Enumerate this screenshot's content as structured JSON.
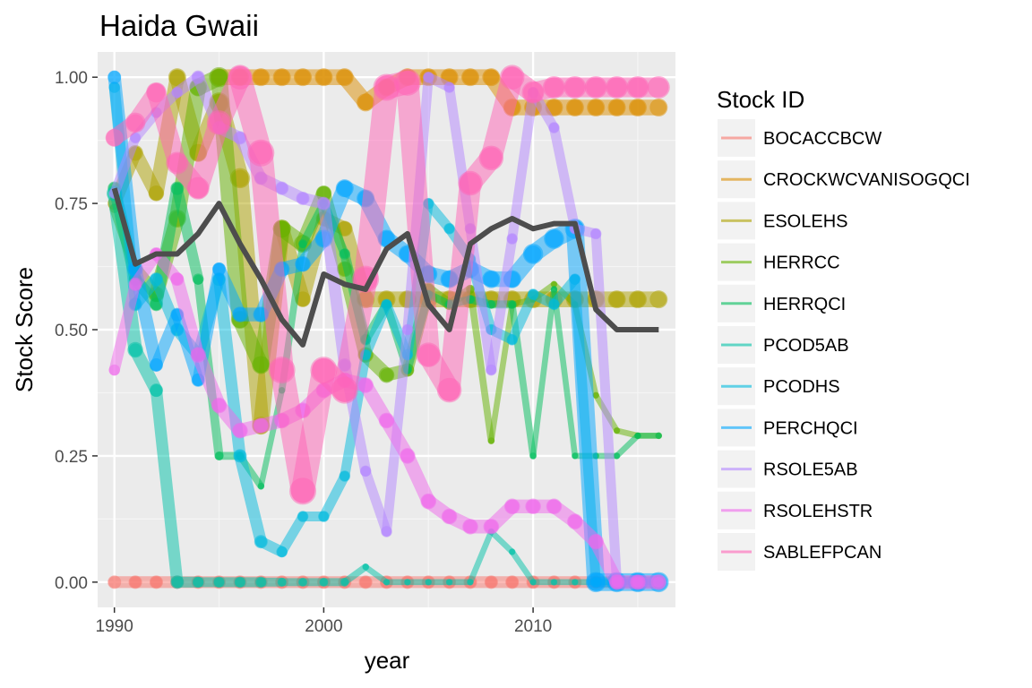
{
  "chart_data": {
    "type": "line",
    "title": "Haida Gwaii",
    "xlabel": "year",
    "ylabel": "Stock Score",
    "xlim": [
      1989.2,
      2016.8
    ],
    "ylim": [
      -0.05,
      1.05
    ],
    "x_ticks": [
      1990,
      2000,
      2010
    ],
    "x_tick_labels": [
      "1990",
      "2000",
      "2010"
    ],
    "y_ticks": [
      0,
      0.25,
      0.5,
      0.75,
      1.0
    ],
    "y_tick_labels": [
      "0.00",
      "0.25",
      "0.50",
      "0.75",
      "1.00"
    ],
    "grid": true,
    "legend": {
      "title": "Stock ID",
      "placement": "right"
    },
    "years": [
      1990,
      1991,
      1992,
      1993,
      1994,
      1995,
      1996,
      1997,
      1998,
      1999,
      2000,
      2001,
      2002,
      2003,
      2004,
      2005,
      2006,
      2007,
      2008,
      2009,
      2010,
      2011,
      2012,
      2013,
      2014,
      2015,
      2016
    ],
    "series": [
      {
        "name": "BOCACCBCW",
        "color": "#F8766D",
        "values": [
          0,
          0,
          0,
          0,
          0,
          0,
          0,
          0,
          0,
          0,
          0,
          0,
          0,
          0,
          0,
          0,
          0,
          0,
          0,
          0,
          0,
          0,
          0,
          0,
          0,
          0,
          0
        ],
        "sizes": [
          6,
          6,
          6,
          6,
          6,
          6,
          6,
          6,
          6,
          6,
          6,
          6,
          6,
          6,
          6,
          6,
          6,
          6,
          6,
          6,
          6,
          6,
          6,
          6,
          6,
          6,
          6
        ]
      },
      {
        "name": "CROCKWCVANISOGQCI",
        "color": "#DB8E00",
        "values": [
          null,
          null,
          null,
          null,
          null,
          1.0,
          1.0,
          1.0,
          1.0,
          1.0,
          1.0,
          1.0,
          0.95,
          0.98,
          1.0,
          1.0,
          1.0,
          1.0,
          1.0,
          0.94,
          0.94,
          0.94,
          0.94,
          0.94,
          0.94,
          0.94,
          0.94
        ],
        "sizes": [
          null,
          null,
          null,
          null,
          null,
          8,
          8,
          8,
          8,
          8,
          8,
          8,
          8,
          8,
          8,
          8,
          8,
          8,
          8,
          8,
          8,
          8,
          8,
          8,
          8,
          8,
          8
        ]
      },
      {
        "name": "ESOLEHS",
        "color": "#AEA200",
        "values": [
          0.75,
          0.85,
          0.77,
          1.0,
          0.85,
          0.95,
          0.8,
          0.31,
          0.7,
          0.56,
          0.72,
          0.7,
          0.56,
          0.56,
          0.56,
          0.56,
          0.56,
          0.56,
          0.56,
          0.56,
          0.56,
          0.56,
          0.56,
          0.56,
          0.56,
          0.56,
          0.56
        ],
        "sizes": [
          6,
          7,
          7,
          8,
          8,
          9,
          9,
          8,
          8,
          7,
          7,
          7,
          8,
          8,
          8,
          8,
          8,
          8,
          8,
          8,
          8,
          8,
          8,
          8,
          8,
          8,
          8
        ]
      },
      {
        "name": "HERRCC",
        "color": "#64B200",
        "values": [
          0.74,
          0.62,
          0.57,
          0.72,
          0.98,
          1.0,
          0.52,
          0.43,
          0.7,
          0.67,
          0.77,
          0.62,
          0.45,
          0.41,
          0.42,
          0.58,
          0.55,
          0.58,
          0.28,
          0.55,
          0.56,
          0.59,
          0.55,
          0.37,
          0.3,
          0.29,
          0.29
        ],
        "sizes": [
          4,
          6,
          7,
          8,
          8,
          9,
          8,
          8,
          8,
          8,
          7,
          7,
          7,
          7,
          6,
          6,
          5,
          4,
          3,
          3,
          3,
          3,
          3,
          3,
          3,
          3,
          3
        ]
      },
      {
        "name": "HERRQCI",
        "color": "#00BD5C",
        "values": [
          0.78,
          0.6,
          0.55,
          0.78,
          0.6,
          0.25,
          0.25,
          0.19,
          0.38,
          0.67,
          0.75,
          0.65,
          0.48,
          0.55,
          0.42,
          0.57,
          0.55,
          0.56,
          0.55,
          0.55,
          0.25,
          0.58,
          0.25,
          0.25,
          0.25,
          0.29,
          0.29
        ],
        "sizes": [
          6,
          6,
          6,
          6,
          5,
          4,
          4,
          3,
          3,
          4,
          4,
          5,
          5,
          4,
          4,
          4,
          4,
          4,
          4,
          4,
          3,
          3,
          3,
          3,
          3,
          3,
          3
        ]
      },
      {
        "name": "PCOD5AB",
        "color": "#00C1A7",
        "values": [
          0.77,
          0.46,
          0.38,
          0.0,
          0.0,
          0.0,
          0.0,
          0.0,
          0.0,
          0.0,
          0.0,
          0.0,
          0.03,
          0.0,
          0.0,
          0.0,
          0.0,
          0.0,
          0.1,
          0.06,
          0.0,
          0.0,
          0.0,
          0.0,
          0.0,
          0.0,
          0.0
        ],
        "sizes": [
          7,
          7,
          6,
          6,
          5,
          5,
          5,
          5,
          4,
          4,
          4,
          4,
          3,
          3,
          3,
          3,
          3,
          3,
          3,
          3,
          3,
          3,
          3,
          3,
          3,
          3,
          3
        ]
      },
      {
        "name": "PCODHS",
        "color": "#00BADE",
        "values": [
          0.98,
          0.55,
          0.6,
          0.5,
          0.45,
          0.6,
          0.25,
          0.08,
          0.06,
          0.13,
          0.13,
          0.21,
          0.45,
          0.55,
          0.45,
          0.75,
          0.7,
          0.64,
          0.5,
          0.48,
          0.57,
          0.55,
          0.6,
          0.0,
          0.0,
          0.0,
          0.0
        ],
        "sizes": [
          5,
          6,
          6,
          6,
          6,
          6,
          6,
          6,
          5,
          5,
          5,
          5,
          5,
          5,
          5,
          5,
          5,
          5,
          5,
          5,
          5,
          5,
          5,
          5,
          5,
          5,
          5
        ]
      },
      {
        "name": "PERCHQCI",
        "color": "#00A6FF",
        "values": [
          1.0,
          0.62,
          0.43,
          0.53,
          0.4,
          0.62,
          0.53,
          0.53,
          0.62,
          0.63,
          0.68,
          0.78,
          0.76,
          0.68,
          0.65,
          0.61,
          0.6,
          0.62,
          0.6,
          0.6,
          0.65,
          0.68,
          0.7,
          0.0,
          0.0,
          0.0,
          0.0
        ],
        "sizes": [
          6,
          7,
          6,
          6,
          6,
          6,
          7,
          7,
          7,
          7,
          8,
          8,
          8,
          8,
          8,
          8,
          8,
          8,
          8,
          8,
          9,
          9,
          9,
          9,
          9,
          9,
          9
        ]
      },
      {
        "name": "RSOLE5AB",
        "color": "#B385FF",
        "values": [
          0.77,
          0.88,
          0.93,
          0.97,
          1.0,
          0.9,
          0.88,
          0.8,
          0.78,
          0.76,
          0.75,
          0.43,
          0.22,
          0.1,
          0.5,
          1.0,
          0.98,
          0.7,
          0.42,
          0.68,
          0.97,
          0.9,
          0.7,
          0.69,
          0.0,
          0.0,
          0.0
        ],
        "sizes": [
          5,
          5,
          5,
          5,
          6,
          6,
          6,
          6,
          6,
          6,
          6,
          6,
          5,
          5,
          5,
          5,
          5,
          5,
          5,
          5,
          5,
          5,
          5,
          5,
          5,
          5,
          5
        ]
      },
      {
        "name": "RSOLEHSTR",
        "color": "#EF67EB",
        "values": [
          0.42,
          0.59,
          0.65,
          0.6,
          0.45,
          0.35,
          0.3,
          0.31,
          0.32,
          0.34,
          0.38,
          0.4,
          0.39,
          0.32,
          0.25,
          0.16,
          0.13,
          0.11,
          0.11,
          0.15,
          0.15,
          0.15,
          0.12,
          0.08,
          0.0,
          0.0,
          0.0
        ],
        "sizes": [
          5,
          6,
          6,
          6,
          7,
          7,
          7,
          7,
          7,
          7,
          7,
          7,
          7,
          7,
          7,
          7,
          7,
          7,
          7,
          7,
          7,
          7,
          7,
          7,
          7,
          7,
          7
        ]
      },
      {
        "name": "SABLEFPCAN",
        "color": "#FF63B6",
        "values": [
          0.88,
          0.91,
          0.97,
          0.83,
          0.78,
          0.91,
          1.0,
          0.85,
          0.42,
          0.18,
          0.42,
          0.38,
          0.6,
          0.98,
          0.99,
          0.45,
          0.38,
          0.79,
          0.84,
          1.0,
          0.97,
          0.98,
          0.98,
          0.98,
          0.98,
          0.98,
          0.98
        ],
        "sizes": [
          8,
          9,
          9,
          10,
          10,
          11,
          11,
          12,
          12,
          12,
          12,
          12,
          12,
          12,
          12,
          11,
          11,
          11,
          11,
          11,
          10,
          10,
          10,
          10,
          10,
          10,
          10
        ]
      }
    ],
    "mean_series": {
      "color": "#4D4D4D",
      "values": [
        0.78,
        0.63,
        0.65,
        0.65,
        0.69,
        0.75,
        0.67,
        0.6,
        0.52,
        0.47,
        0.61,
        0.59,
        0.58,
        0.66,
        0.69,
        0.55,
        0.5,
        0.67,
        0.7,
        0.72,
        0.7,
        0.71,
        0.71,
        0.54,
        0.5,
        0.5,
        0.5
      ]
    }
  }
}
